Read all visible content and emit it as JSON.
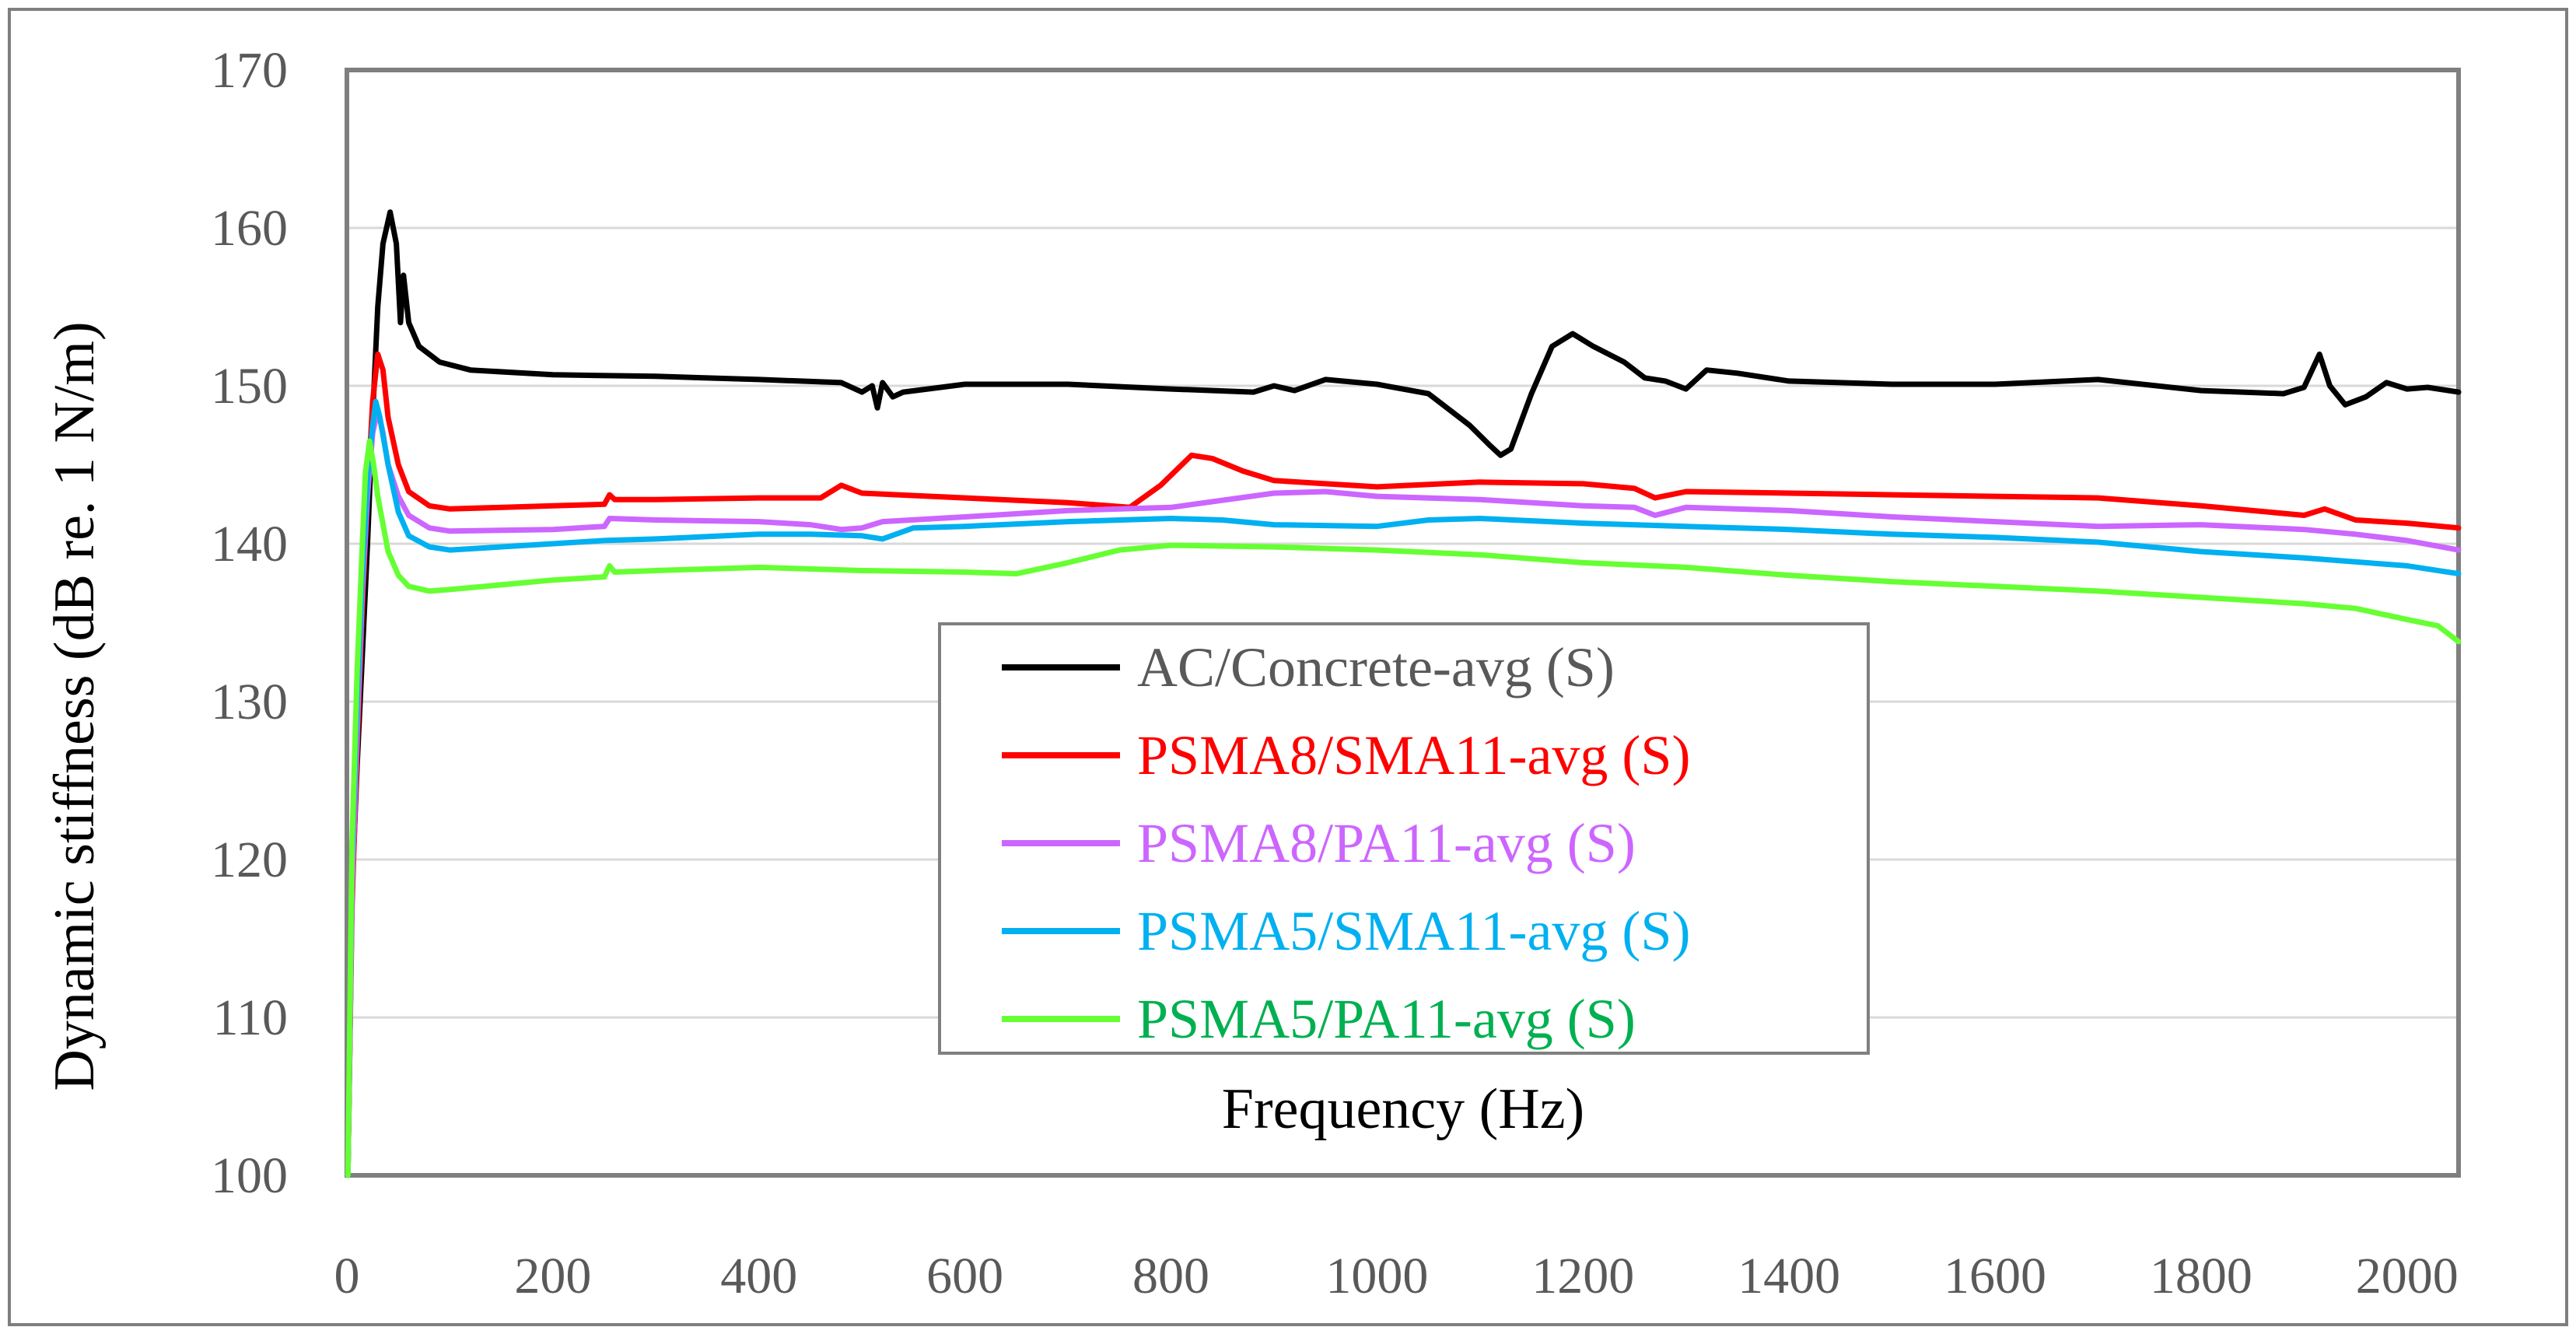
{
  "chart_data": {
    "type": "line",
    "title": "",
    "xlabel": "Frequency (Hz)",
    "ylabel": "Dynamic stiffness (dB re. 1 N/m)",
    "xlim": [
      0,
      2050
    ],
    "ylim": [
      100,
      170
    ],
    "xticks": [
      0,
      200,
      400,
      600,
      800,
      1000,
      1200,
      1400,
      1600,
      1800,
      2000
    ],
    "yticks": [
      100,
      110,
      120,
      130,
      140,
      150,
      160,
      170
    ],
    "x_tick_labels": [
      "0",
      "200",
      "400",
      "600",
      "800",
      "1000",
      "1200",
      "1400",
      "1600",
      "1800",
      "2000"
    ],
    "y_tick_labels": [
      "100",
      "110",
      "120",
      "130",
      "140",
      "150",
      "160",
      "170"
    ],
    "grid": true,
    "legend_position": "center-bottom",
    "series": [
      {
        "name": "AC/Concrete-avg (S)",
        "color": "#000000",
        "label_color": "#595959",
        "points": [
          [
            1,
            100
          ],
          [
            5,
            118
          ],
          [
            10,
            126
          ],
          [
            15,
            133
          ],
          [
            20,
            140
          ],
          [
            25,
            148
          ],
          [
            30,
            155
          ],
          [
            35,
            159
          ],
          [
            42,
            161
          ],
          [
            48,
            159
          ],
          [
            52,
            154
          ],
          [
            55,
            157
          ],
          [
            60,
            154
          ],
          [
            70,
            152.5
          ],
          [
            90,
            151.5
          ],
          [
            120,
            151
          ],
          [
            200,
            150.7
          ],
          [
            300,
            150.6
          ],
          [
            400,
            150.4
          ],
          [
            480,
            150.2
          ],
          [
            500,
            149.6
          ],
          [
            510,
            150
          ],
          [
            515,
            148.6
          ],
          [
            520,
            150.2
          ],
          [
            530,
            149.3
          ],
          [
            540,
            149.6
          ],
          [
            600,
            150.1
          ],
          [
            700,
            150.1
          ],
          [
            800,
            149.8
          ],
          [
            880,
            149.6
          ],
          [
            900,
            150
          ],
          [
            920,
            149.7
          ],
          [
            950,
            150.4
          ],
          [
            1000,
            150.1
          ],
          [
            1050,
            149.5
          ],
          [
            1090,
            147.5
          ],
          [
            1110,
            146.2
          ],
          [
            1120,
            145.6
          ],
          [
            1130,
            146
          ],
          [
            1150,
            149.5
          ],
          [
            1170,
            152.5
          ],
          [
            1190,
            153.3
          ],
          [
            1210,
            152.5
          ],
          [
            1240,
            151.5
          ],
          [
            1260,
            150.5
          ],
          [
            1280,
            150.3
          ],
          [
            1300,
            149.8
          ],
          [
            1320,
            151
          ],
          [
            1350,
            150.8
          ],
          [
            1400,
            150.3
          ],
          [
            1500,
            150.1
          ],
          [
            1600,
            150.1
          ],
          [
            1700,
            150.4
          ],
          [
            1800,
            149.7
          ],
          [
            1880,
            149.5
          ],
          [
            1900,
            149.9
          ],
          [
            1915,
            152
          ],
          [
            1925,
            150
          ],
          [
            1940,
            148.8
          ],
          [
            1960,
            149.3
          ],
          [
            1980,
            150.2
          ],
          [
            2000,
            149.8
          ],
          [
            2020,
            149.9
          ],
          [
            2050,
            149.6
          ]
        ]
      },
      {
        "name": "PSMA8/SMA11-avg (S)",
        "color": "#ff0000",
        "label_color": "#ff0000",
        "points": [
          [
            1,
            100
          ],
          [
            5,
            117
          ],
          [
            10,
            127
          ],
          [
            15,
            136
          ],
          [
            20,
            143
          ],
          [
            25,
            149
          ],
          [
            30,
            152
          ],
          [
            35,
            151
          ],
          [
            40,
            148
          ],
          [
            50,
            145
          ],
          [
            60,
            143.3
          ],
          [
            80,
            142.4
          ],
          [
            100,
            142.2
          ],
          [
            200,
            142.4
          ],
          [
            250,
            142.5
          ],
          [
            255,
            143.1
          ],
          [
            260,
            142.8
          ],
          [
            300,
            142.8
          ],
          [
            400,
            142.9
          ],
          [
            460,
            142.9
          ],
          [
            480,
            143.7
          ],
          [
            500,
            143.2
          ],
          [
            600,
            142.9
          ],
          [
            700,
            142.6
          ],
          [
            760,
            142.3
          ],
          [
            790,
            143.7
          ],
          [
            820,
            145.6
          ],
          [
            840,
            145.4
          ],
          [
            870,
            144.6
          ],
          [
            900,
            144
          ],
          [
            1000,
            143.6
          ],
          [
            1100,
            143.9
          ],
          [
            1200,
            143.8
          ],
          [
            1250,
            143.5
          ],
          [
            1270,
            142.9
          ],
          [
            1300,
            143.3
          ],
          [
            1400,
            143.2
          ],
          [
            1500,
            143.1
          ],
          [
            1600,
            143
          ],
          [
            1700,
            142.9
          ],
          [
            1800,
            142.4
          ],
          [
            1900,
            141.8
          ],
          [
            1920,
            142.2
          ],
          [
            1950,
            141.5
          ],
          [
            2000,
            141.3
          ],
          [
            2050,
            141
          ]
        ]
      },
      {
        "name": "PSMA8/PA11-avg (S)",
        "color": "#cc66ff",
        "label_color": "#cc66ff",
        "points": [
          [
            1,
            100
          ],
          [
            5,
            118
          ],
          [
            10,
            128
          ],
          [
            15,
            137
          ],
          [
            20,
            143
          ],
          [
            25,
            147
          ],
          [
            30,
            148.5
          ],
          [
            35,
            147
          ],
          [
            40,
            145
          ],
          [
            50,
            143
          ],
          [
            60,
            141.8
          ],
          [
            80,
            141
          ],
          [
            100,
            140.8
          ],
          [
            200,
            140.9
          ],
          [
            250,
            141.1
          ],
          [
            255,
            141.6
          ],
          [
            300,
            141.5
          ],
          [
            400,
            141.4
          ],
          [
            450,
            141.2
          ],
          [
            480,
            140.9
          ],
          [
            500,
            141
          ],
          [
            520,
            141.4
          ],
          [
            600,
            141.7
          ],
          [
            700,
            142.1
          ],
          [
            800,
            142.3
          ],
          [
            900,
            143.2
          ],
          [
            950,
            143.3
          ],
          [
            1000,
            143
          ],
          [
            1100,
            142.8
          ],
          [
            1200,
            142.4
          ],
          [
            1250,
            142.3
          ],
          [
            1270,
            141.8
          ],
          [
            1300,
            142.3
          ],
          [
            1400,
            142.1
          ],
          [
            1500,
            141.7
          ],
          [
            1600,
            141.4
          ],
          [
            1700,
            141.1
          ],
          [
            1800,
            141.2
          ],
          [
            1900,
            140.9
          ],
          [
            1950,
            140.6
          ],
          [
            2000,
            140.2
          ],
          [
            2050,
            139.6
          ]
        ]
      },
      {
        "name": "PSMA5/SMA11-avg (S)",
        "color": "#00b0f0",
        "label_color": "#00b0f0",
        "points": [
          [
            1,
            100
          ],
          [
            5,
            120
          ],
          [
            10,
            130
          ],
          [
            15,
            138
          ],
          [
            20,
            144
          ],
          [
            25,
            147.5
          ],
          [
            28,
            149
          ],
          [
            32,
            148
          ],
          [
            40,
            145
          ],
          [
            50,
            142
          ],
          [
            60,
            140.5
          ],
          [
            80,
            139.8
          ],
          [
            100,
            139.6
          ],
          [
            200,
            140
          ],
          [
            250,
            140.2
          ],
          [
            300,
            140.3
          ],
          [
            400,
            140.6
          ],
          [
            450,
            140.6
          ],
          [
            500,
            140.5
          ],
          [
            520,
            140.3
          ],
          [
            550,
            141
          ],
          [
            600,
            141.1
          ],
          [
            700,
            141.4
          ],
          [
            800,
            141.6
          ],
          [
            850,
            141.5
          ],
          [
            900,
            141.2
          ],
          [
            1000,
            141.1
          ],
          [
            1050,
            141.5
          ],
          [
            1100,
            141.6
          ],
          [
            1200,
            141.3
          ],
          [
            1300,
            141.1
          ],
          [
            1400,
            140.9
          ],
          [
            1500,
            140.6
          ],
          [
            1600,
            140.4
          ],
          [
            1700,
            140.1
          ],
          [
            1800,
            139.5
          ],
          [
            1900,
            139.1
          ],
          [
            2000,
            138.6
          ],
          [
            2050,
            138.1
          ]
        ]
      },
      {
        "name": "PSMA5/PA11-avg (S)",
        "color": "#66ff33",
        "label_color": "#00b050",
        "points": [
          [
            1,
            100
          ],
          [
            5,
            121
          ],
          [
            10,
            132
          ],
          [
            15,
            140
          ],
          [
            18,
            144.5
          ],
          [
            22,
            146.5
          ],
          [
            26,
            145
          ],
          [
            30,
            143
          ],
          [
            40,
            139.5
          ],
          [
            50,
            138
          ],
          [
            60,
            137.3
          ],
          [
            80,
            137
          ],
          [
            100,
            137.1
          ],
          [
            200,
            137.7
          ],
          [
            250,
            137.9
          ],
          [
            255,
            138.6
          ],
          [
            260,
            138.2
          ],
          [
            300,
            138.3
          ],
          [
            400,
            138.5
          ],
          [
            500,
            138.3
          ],
          [
            600,
            138.2
          ],
          [
            650,
            138.1
          ],
          [
            700,
            138.8
          ],
          [
            750,
            139.6
          ],
          [
            800,
            139.9
          ],
          [
            900,
            139.8
          ],
          [
            1000,
            139.6
          ],
          [
            1100,
            139.3
          ],
          [
            1200,
            138.8
          ],
          [
            1300,
            138.5
          ],
          [
            1400,
            138
          ],
          [
            1500,
            137.6
          ],
          [
            1600,
            137.3
          ],
          [
            1700,
            137
          ],
          [
            1800,
            136.6
          ],
          [
            1900,
            136.2
          ],
          [
            1950,
            135.9
          ],
          [
            2000,
            135.2
          ],
          [
            2030,
            134.8
          ],
          [
            2050,
            133.8
          ]
        ]
      }
    ]
  }
}
